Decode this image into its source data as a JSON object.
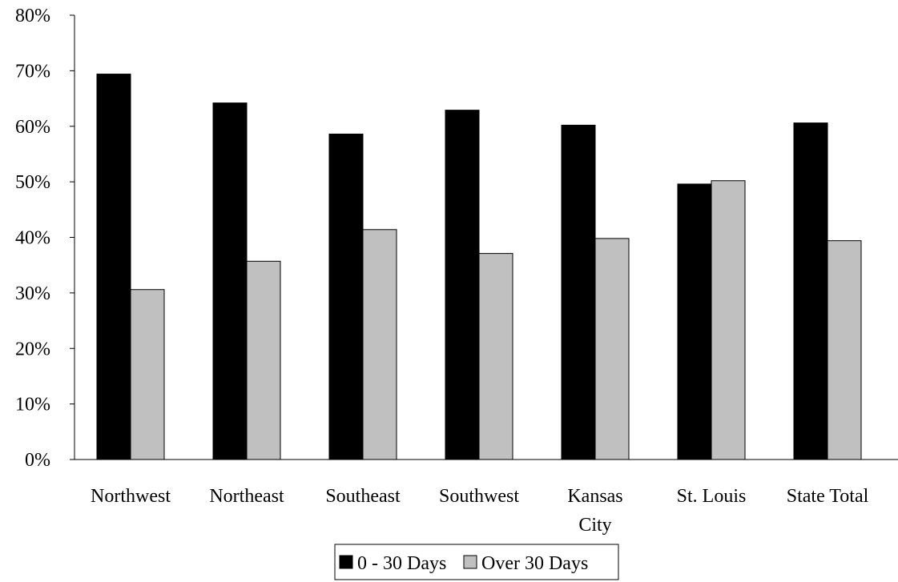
{
  "chart_data": {
    "type": "bar",
    "categories": [
      "Northwest",
      "Northeast",
      "Southeast",
      "Southwest",
      "Kansas City",
      "St. Louis",
      "State Total"
    ],
    "category_lines": [
      [
        "Northwest"
      ],
      [
        "Northeast"
      ],
      [
        "Southeast"
      ],
      [
        "Southwest"
      ],
      [
        "Kansas",
        "City"
      ],
      [
        "St. Louis"
      ],
      [
        "State Total"
      ]
    ],
    "series": [
      {
        "name": "0 - 30 Days",
        "color": "#000000",
        "values": [
          69.4,
          64.2,
          58.6,
          62.9,
          60.2,
          49.6,
          60.6
        ]
      },
      {
        "name": "Over 30 Days",
        "color": "#c0c0c0",
        "values": [
          30.6,
          35.7,
          41.4,
          37.1,
          39.8,
          50.2,
          39.4
        ]
      }
    ],
    "ylim": [
      0,
      80
    ],
    "yticks": [
      0,
      10,
      20,
      30,
      40,
      50,
      60,
      70,
      80
    ],
    "ytick_labels": [
      "0%",
      "10%",
      "20%",
      "30%",
      "40%",
      "50%",
      "60%",
      "70%",
      "80%"
    ],
    "grid": false,
    "legend_position": "bottom-center"
  }
}
